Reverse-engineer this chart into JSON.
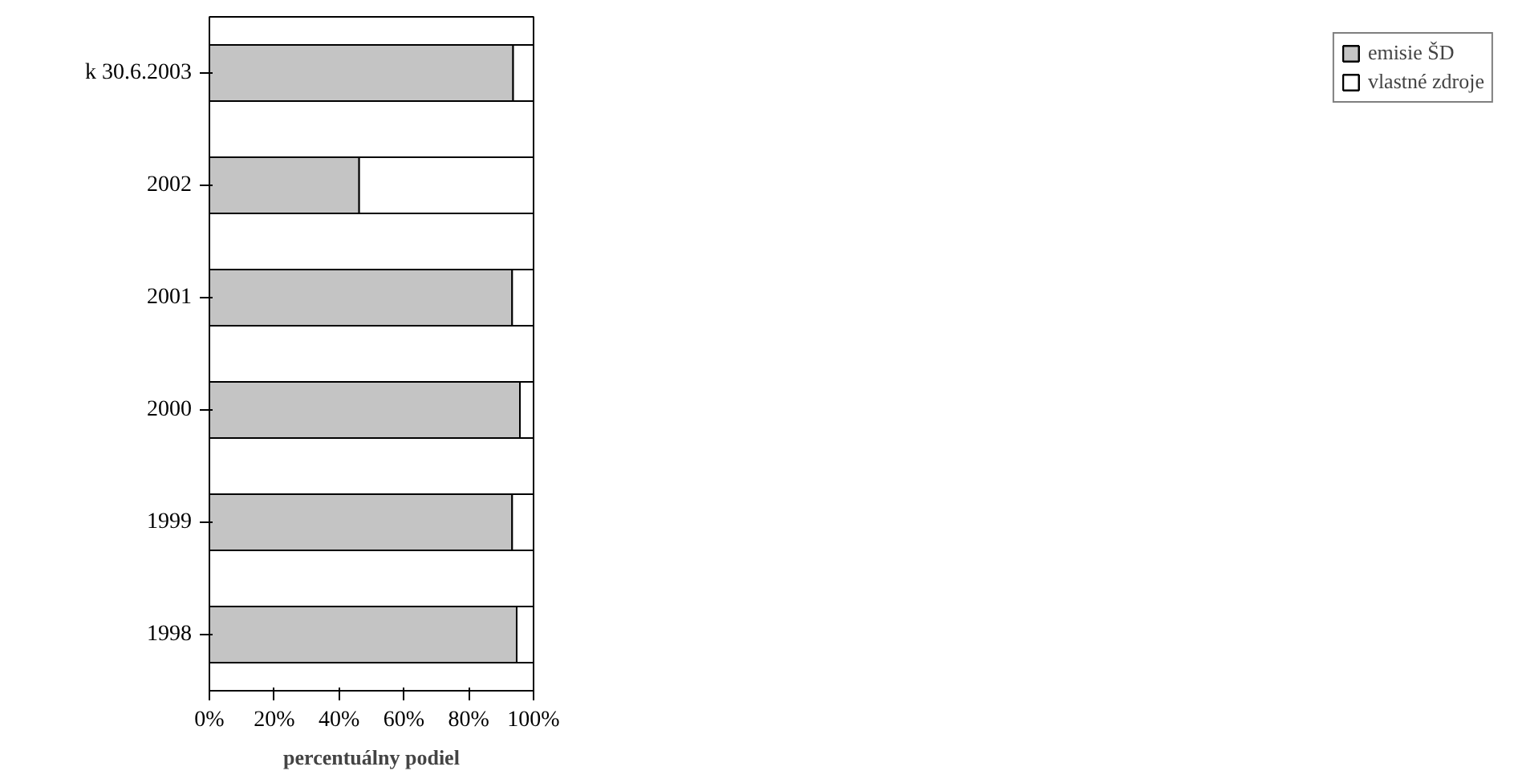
{
  "chart_data": {
    "type": "bar",
    "orientation": "horizontal",
    "stacked": true,
    "xlabel": "percentuálny podiel",
    "categories": [
      "k 30.6.2003",
      "2002",
      "2001",
      "2000",
      "1999",
      "1998"
    ],
    "series": [
      {
        "name": "emisie ŠD",
        "color": "#c4c4c4",
        "values": [
          93.7,
          46.2,
          93.4,
          95.8,
          93.4,
          94.8
        ]
      },
      {
        "name": "vlastné zdroje",
        "color": "#ffffff",
        "values": [
          6.3,
          53.8,
          6.6,
          4.2,
          6.6,
          5.2
        ]
      }
    ],
    "xlim": [
      0,
      100
    ],
    "xticks": [
      {
        "value": 0,
        "label": "0%"
      },
      {
        "value": 20,
        "label": "20%"
      },
      {
        "value": 40,
        "label": "40%"
      },
      {
        "value": 60,
        "label": "60%"
      },
      {
        "value": 80,
        "label": "80%"
      },
      {
        "value": 100,
        "label": "100%"
      }
    ],
    "grid": false,
    "legend": "right"
  }
}
